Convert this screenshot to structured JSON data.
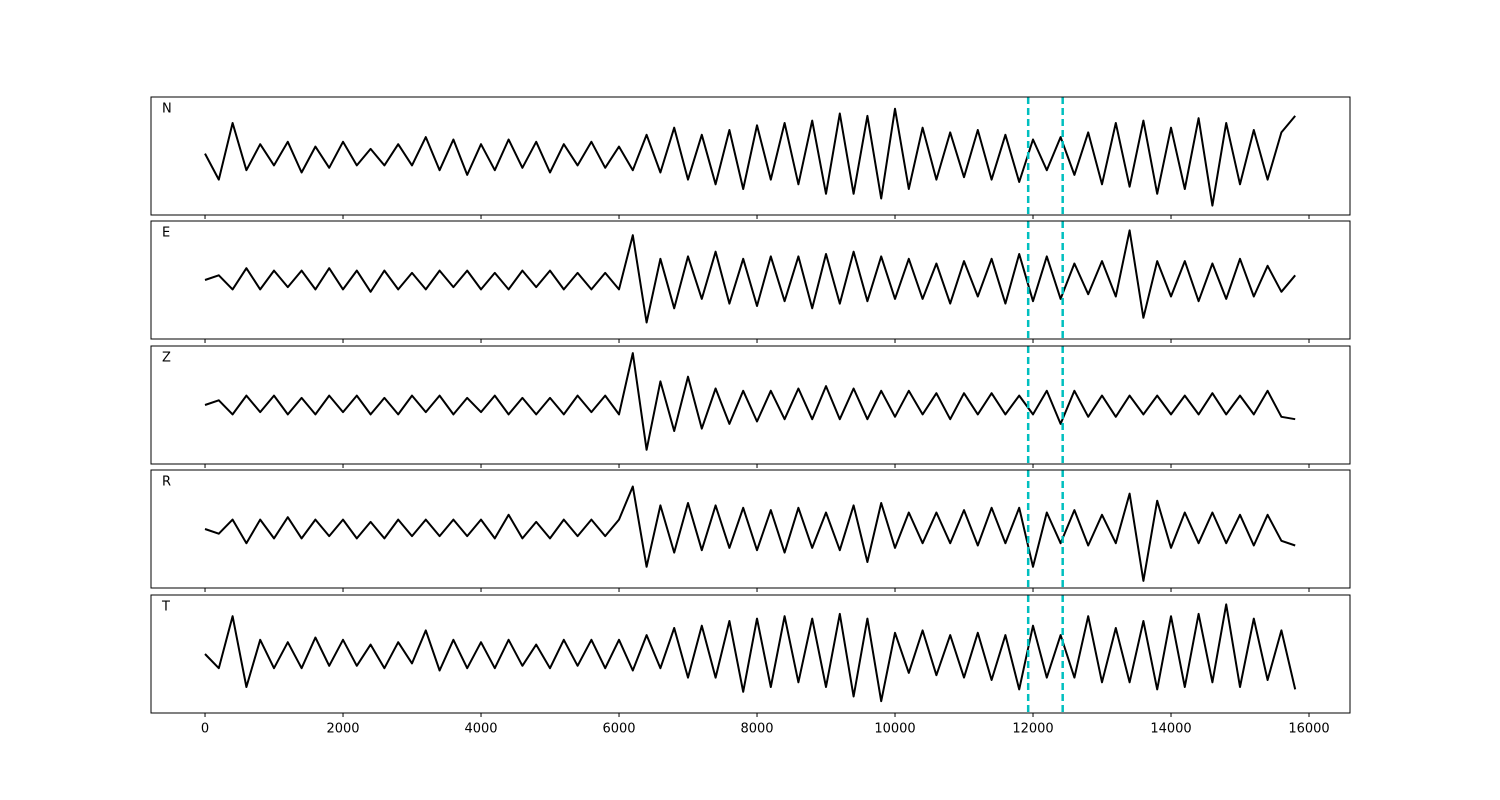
{
  "chart_data": [
    {
      "type": "line",
      "label": "N",
      "color": "#000000",
      "vline_color": "#00bfbf",
      "vlines": [
        11930,
        12430
      ],
      "xlim": [
        -783,
        16594
      ],
      "ylim": [
        -1.25,
        1.25
      ],
      "x": [
        0,
        200,
        400,
        600,
        800,
        1000,
        1200,
        1400,
        1600,
        1800,
        2000,
        2200,
        2400,
        2600,
        2800,
        3000,
        3200,
        3400,
        3600,
        3800,
        4000,
        4200,
        4400,
        4600,
        4800,
        5000,
        5200,
        5400,
        5600,
        5800,
        6000,
        6200,
        6400,
        6600,
        6800,
        7000,
        7200,
        7400,
        7600,
        7800,
        8000,
        8200,
        8400,
        8600,
        8800,
        9000,
        9200,
        9400,
        9600,
        9800,
        10000,
        10200,
        10400,
        10600,
        10800,
        11000,
        11200,
        11400,
        11600,
        11800,
        12000,
        12200,
        12400,
        12600,
        12800,
        13000,
        13200,
        13400,
        13600,
        13800,
        14000,
        14200,
        14400,
        14600,
        14800,
        15000,
        15200,
        15400,
        15600,
        15800
      ],
      "values": [
        0.05,
        -0.5,
        0.7,
        -0.3,
        0.25,
        -0.2,
        0.3,
        -0.35,
        0.2,
        -0.25,
        0.3,
        -0.2,
        0.15,
        -0.2,
        0.25,
        -0.2,
        0.4,
        -0.3,
        0.35,
        -0.4,
        0.25,
        -0.3,
        0.35,
        -0.25,
        0.3,
        -0.35,
        0.25,
        -0.2,
        0.3,
        -0.25,
        0.2,
        -0.3,
        0.45,
        -0.35,
        0.6,
        -0.5,
        0.45,
        -0.6,
        0.55,
        -0.7,
        0.65,
        -0.5,
        0.7,
        -0.6,
        0.75,
        -0.8,
        0.9,
        -0.8,
        0.85,
        -0.9,
        1.0,
        -0.7,
        0.6,
        -0.5,
        0.5,
        -0.45,
        0.55,
        -0.5,
        0.45,
        -0.55,
        0.35,
        -0.3,
        0.4,
        -0.4,
        0.5,
        -0.6,
        0.7,
        -0.65,
        0.75,
        -0.8,
        0.6,
        -0.7,
        0.8,
        -1.05,
        0.7,
        -0.6,
        0.55,
        -0.5,
        0.5,
        0.85
      ]
    },
    {
      "type": "line",
      "label": "E",
      "color": "#000000",
      "vline_color": "#00bfbf",
      "vlines": [
        11930,
        12430
      ],
      "xlim": [
        -783,
        16594
      ],
      "ylim": [
        -1.25,
        1.25
      ],
      "x": [
        0,
        200,
        400,
        600,
        800,
        1000,
        1200,
        1400,
        1600,
        1800,
        2000,
        2200,
        2400,
        2600,
        2800,
        3000,
        3200,
        3400,
        3600,
        3800,
        4000,
        4200,
        4400,
        4600,
        4800,
        5000,
        5200,
        5400,
        5600,
        5800,
        6000,
        6200,
        6400,
        6600,
        6800,
        7000,
        7200,
        7400,
        7600,
        7800,
        8000,
        8200,
        8400,
        8600,
        8800,
        9000,
        9200,
        9400,
        9600,
        9800,
        10000,
        10200,
        10400,
        10600,
        10800,
        11000,
        11200,
        11400,
        11600,
        11800,
        12000,
        12200,
        12400,
        12600,
        12800,
        13000,
        13200,
        13400,
        13600,
        13800,
        14000,
        14200,
        14400,
        14600,
        14800,
        15000,
        15200,
        15400,
        15600,
        15800
      ],
      "values": [
        0,
        0.1,
        -0.2,
        0.25,
        -0.2,
        0.2,
        -0.15,
        0.2,
        -0.2,
        0.25,
        -0.2,
        0.2,
        -0.25,
        0.2,
        -0.2,
        0.15,
        -0.2,
        0.2,
        -0.15,
        0.2,
        -0.2,
        0.15,
        -0.2,
        0.2,
        -0.15,
        0.2,
        -0.2,
        0.15,
        -0.2,
        0.15,
        -0.2,
        0.95,
        -0.9,
        0.45,
        -0.6,
        0.5,
        -0.4,
        0.6,
        -0.5,
        0.45,
        -0.55,
        0.5,
        -0.45,
        0.5,
        -0.6,
        0.55,
        -0.5,
        0.6,
        -0.45,
        0.5,
        -0.4,
        0.45,
        -0.4,
        0.35,
        -0.5,
        0.4,
        -0.35,
        0.45,
        -0.5,
        0.55,
        -0.45,
        0.5,
        -0.4,
        0.35,
        -0.3,
        0.4,
        -0.35,
        1.05,
        -0.8,
        0.4,
        -0.35,
        0.4,
        -0.45,
        0.35,
        -0.4,
        0.45,
        -0.35,
        0.3,
        -0.25,
        0.1
      ]
    },
    {
      "type": "line",
      "label": "Z",
      "color": "#000000",
      "vline_color": "#00bfbf",
      "vlines": [
        11930,
        12430
      ],
      "xlim": [
        -783,
        16594
      ],
      "ylim": [
        -1.25,
        1.25
      ],
      "x": [
        0,
        200,
        400,
        600,
        800,
        1000,
        1200,
        1400,
        1600,
        1800,
        2000,
        2200,
        2400,
        2600,
        2800,
        3000,
        3200,
        3400,
        3600,
        3800,
        4000,
        4200,
        4400,
        4600,
        4800,
        5000,
        5200,
        5400,
        5600,
        5800,
        6000,
        6200,
        6400,
        6600,
        6800,
        7000,
        7200,
        7400,
        7600,
        7800,
        8000,
        8200,
        8400,
        8600,
        8800,
        9000,
        9200,
        9400,
        9600,
        9800,
        10000,
        10200,
        10400,
        10600,
        10800,
        11000,
        11200,
        11400,
        11600,
        11800,
        12000,
        12200,
        12400,
        12600,
        12800,
        13000,
        13200,
        13400,
        13600,
        13800,
        14000,
        14200,
        14400,
        14600,
        14800,
        15000,
        15200,
        15400,
        15600,
        15800
      ],
      "values": [
        0,
        0.1,
        -0.2,
        0.2,
        -0.15,
        0.2,
        -0.2,
        0.15,
        -0.2,
        0.2,
        -0.15,
        0.2,
        -0.2,
        0.15,
        -0.2,
        0.2,
        -0.15,
        0.2,
        -0.2,
        0.15,
        -0.15,
        0.2,
        -0.2,
        0.15,
        -0.2,
        0.15,
        -0.2,
        0.2,
        -0.15,
        0.2,
        -0.2,
        1.1,
        -0.95,
        0.5,
        -0.55,
        0.6,
        -0.5,
        0.35,
        -0.4,
        0.3,
        -0.35,
        0.3,
        -0.3,
        0.35,
        -0.3,
        0.4,
        -0.3,
        0.35,
        -0.3,
        0.3,
        -0.25,
        0.3,
        -0.2,
        0.25,
        -0.3,
        0.25,
        -0.2,
        0.25,
        -0.2,
        0.2,
        -0.2,
        0.3,
        -0.4,
        0.3,
        -0.25,
        0.2,
        -0.25,
        0.2,
        -0.2,
        0.2,
        -0.2,
        0.2,
        -0.2,
        0.25,
        -0.2,
        0.2,
        -0.2,
        0.3,
        -0.25,
        -0.3
      ]
    },
    {
      "type": "line",
      "label": "R",
      "color": "#000000",
      "vline_color": "#00bfbf",
      "vlines": [
        11930,
        12430
      ],
      "xlim": [
        -783,
        16594
      ],
      "ylim": [
        -1.25,
        1.25
      ],
      "x": [
        0,
        200,
        400,
        600,
        800,
        1000,
        1200,
        1400,
        1600,
        1800,
        2000,
        2200,
        2400,
        2600,
        2800,
        3000,
        3200,
        3400,
        3600,
        3800,
        4000,
        4200,
        4400,
        4600,
        4800,
        5000,
        5200,
        5400,
        5600,
        5800,
        6000,
        6200,
        6400,
        6600,
        6800,
        7000,
        7200,
        7400,
        7600,
        7800,
        8000,
        8200,
        8400,
        8600,
        8800,
        9000,
        9200,
        9400,
        9600,
        9800,
        10000,
        10200,
        10400,
        10600,
        10800,
        11000,
        11200,
        11400,
        11600,
        11800,
        12000,
        12200,
        12400,
        12600,
        12800,
        13000,
        13200,
        13400,
        13600,
        13800,
        14000,
        14200,
        14400,
        14600,
        14800,
        15000,
        15200,
        15400,
        15600,
        15800
      ],
      "values": [
        0,
        -0.1,
        0.2,
        -0.3,
        0.2,
        -0.2,
        0.25,
        -0.2,
        0.2,
        -0.15,
        0.2,
        -0.2,
        0.15,
        -0.2,
        0.2,
        -0.15,
        0.2,
        -0.15,
        0.2,
        -0.15,
        0.2,
        -0.2,
        0.3,
        -0.2,
        0.15,
        -0.2,
        0.2,
        -0.15,
        0.2,
        -0.15,
        0.2,
        0.9,
        -0.8,
        0.5,
        -0.5,
        0.55,
        -0.45,
        0.5,
        -0.4,
        0.45,
        -0.45,
        0.4,
        -0.5,
        0.45,
        -0.4,
        0.35,
        -0.45,
        0.5,
        -0.7,
        0.55,
        -0.4,
        0.35,
        -0.3,
        0.35,
        -0.3,
        0.4,
        -0.35,
        0.45,
        -0.3,
        0.45,
        -0.8,
        0.35,
        -0.3,
        0.4,
        -0.35,
        0.3,
        -0.3,
        0.75,
        -1.1,
        0.6,
        -0.4,
        0.35,
        -0.3,
        0.35,
        -0.3,
        0.3,
        -0.35,
        0.3,
        -0.25,
        -0.35
      ]
    },
    {
      "type": "line",
      "label": "T",
      "color": "#000000",
      "vline_color": "#00bfbf",
      "vlines": [
        11930,
        12430
      ],
      "xlim": [
        -783,
        16594
      ],
      "ylim": [
        -1.25,
        1.25
      ],
      "xticks": [
        0,
        2000,
        4000,
        6000,
        8000,
        10000,
        12000,
        14000,
        16000
      ],
      "x": [
        0,
        200,
        400,
        600,
        800,
        1000,
        1200,
        1400,
        1600,
        1800,
        2000,
        2200,
        2400,
        2600,
        2800,
        3000,
        3200,
        3400,
        3600,
        3800,
        4000,
        4200,
        4400,
        4600,
        4800,
        5000,
        5200,
        5400,
        5600,
        5800,
        6000,
        6200,
        6400,
        6600,
        6800,
        7000,
        7200,
        7400,
        7600,
        7800,
        8000,
        8200,
        8400,
        8600,
        8800,
        9000,
        9200,
        9400,
        9600,
        9800,
        10000,
        10200,
        10400,
        10600,
        10800,
        11000,
        11200,
        11400,
        11600,
        11800,
        12000,
        12200,
        12400,
        12600,
        12800,
        13000,
        13200,
        13400,
        13600,
        13800,
        14000,
        14200,
        14400,
        14600,
        14800,
        15000,
        15200,
        15400,
        15600,
        15800
      ],
      "values": [
        0,
        -0.3,
        0.8,
        -0.7,
        0.3,
        -0.3,
        0.25,
        -0.3,
        0.35,
        -0.25,
        0.3,
        -0.25,
        0.2,
        -0.3,
        0.25,
        -0.2,
        0.5,
        -0.35,
        0.3,
        -0.3,
        0.25,
        -0.3,
        0.3,
        -0.25,
        0.2,
        -0.3,
        0.3,
        -0.25,
        0.3,
        -0.3,
        0.3,
        -0.35,
        0.4,
        -0.3,
        0.55,
        -0.5,
        0.6,
        -0.5,
        0.7,
        -0.8,
        0.75,
        -0.7,
        0.8,
        -0.6,
        0.75,
        -0.7,
        0.85,
        -0.9,
        0.75,
        -1.0,
        0.45,
        -0.4,
        0.5,
        -0.45,
        0.4,
        -0.5,
        0.45,
        -0.55,
        0.4,
        -0.75,
        0.6,
        -0.5,
        0.4,
        -0.5,
        0.8,
        -0.6,
        0.55,
        -0.6,
        0.7,
        -0.75,
        0.8,
        -0.7,
        0.85,
        -0.6,
        1.05,
        -0.7,
        0.75,
        -0.55,
        0.5,
        -0.75
      ]
    }
  ]
}
